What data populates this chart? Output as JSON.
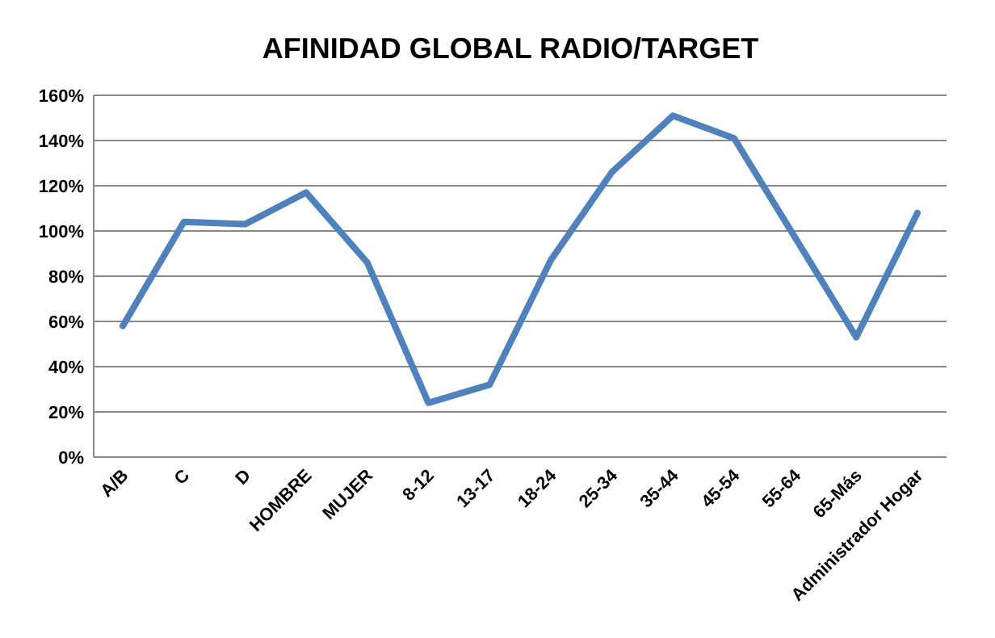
{
  "chart_data": {
    "type": "line",
    "title": "AFINIDAD GLOBAL RADIO/TARGET",
    "categories": [
      "A/B",
      "C",
      "D",
      "HOMBRE",
      "MUJER",
      "8-12",
      "13-17",
      "18-24",
      "25-34",
      "35-44",
      "45-54",
      "55-64",
      "65-Más",
      "Administrador Hogar"
    ],
    "series": [
      {
        "color": "#4f81bd",
        "values": [
          58,
          104,
          103,
          117,
          86,
          24,
          32,
          87,
          126,
          151,
          141,
          97,
          53,
          108
        ]
      }
    ],
    "ylim": [
      0,
      160
    ],
    "yticks": [
      {
        "value": 0,
        "label": "0%"
      },
      {
        "value": 20,
        "label": "20%"
      },
      {
        "value": 40,
        "label": "40%"
      },
      {
        "value": 60,
        "label": "60%"
      },
      {
        "value": 80,
        "label": "80%"
      },
      {
        "value": 100,
        "label": "100%"
      },
      {
        "value": 120,
        "label": "120%"
      },
      {
        "value": 140,
        "label": "140%"
      },
      {
        "value": 160,
        "label": "160%"
      }
    ],
    "grid": "y",
    "marker": "none",
    "line_style": "solid"
  }
}
